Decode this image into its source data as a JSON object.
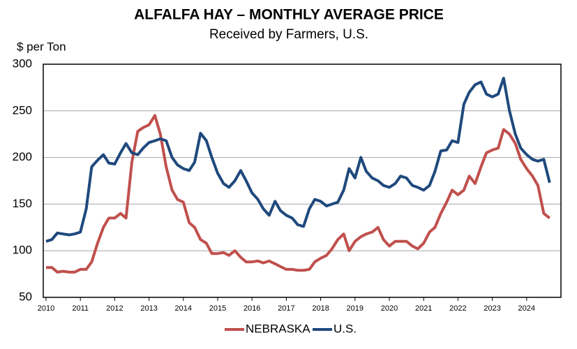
{
  "chart_data": {
    "type": "line",
    "title": "ALFALFA HAY – MONTHLY AVERAGE PRICE",
    "subtitle": "Received by Farmers, U.S.",
    "y_label": "$ per Ton",
    "x": [
      2010,
      2010.17,
      2010.33,
      2010.5,
      2010.67,
      2010.83,
      2011,
      2011.17,
      2011.33,
      2011.5,
      2011.67,
      2011.83,
      2012,
      2012.17,
      2012.33,
      2012.5,
      2012.67,
      2012.83,
      2013,
      2013.17,
      2013.33,
      2013.5,
      2013.67,
      2013.83,
      2014,
      2014.17,
      2014.33,
      2014.5,
      2014.67,
      2014.83,
      2015,
      2015.17,
      2015.33,
      2015.5,
      2015.67,
      2015.83,
      2016,
      2016.17,
      2016.33,
      2016.5,
      2016.67,
      2016.83,
      2017,
      2017.17,
      2017.33,
      2017.5,
      2017.67,
      2017.83,
      2018,
      2018.17,
      2018.33,
      2018.5,
      2018.67,
      2018.83,
      2019,
      2019.17,
      2019.33,
      2019.5,
      2019.67,
      2019.83,
      2020,
      2020.17,
      2020.33,
      2020.5,
      2020.67,
      2020.83,
      2021,
      2021.17,
      2021.33,
      2021.5,
      2021.67,
      2021.83,
      2022,
      2022.17,
      2022.33,
      2022.5,
      2022.67,
      2022.83,
      2023,
      2023.17,
      2023.33,
      2023.5,
      2023.67,
      2023.83,
      2024,
      2024.17,
      2024.33,
      2024.5,
      2024.67
    ],
    "series": [
      {
        "name": "NEBRASKA",
        "color": "#c0504d",
        "values": [
          82,
          82,
          77,
          78,
          77,
          77,
          80,
          80,
          88,
          108,
          125,
          135,
          135,
          140,
          135,
          195,
          228,
          232,
          235,
          245,
          225,
          190,
          165,
          155,
          152,
          130,
          125,
          112,
          108,
          97,
          97,
          98,
          95,
          100,
          93,
          88,
          88,
          89,
          87,
          89,
          86,
          83,
          80,
          80,
          79,
          79,
          80,
          88,
          92,
          95,
          102,
          112,
          118,
          100,
          110,
          115,
          118,
          120,
          125,
          112,
          105,
          110,
          110,
          110,
          105,
          102,
          108,
          120,
          125,
          140,
          152,
          165,
          160,
          165,
          180,
          172,
          190,
          205,
          208,
          210,
          230,
          225,
          215,
          198,
          188,
          180,
          170,
          140,
          135
        ]
      },
      {
        "name": "U.S.",
        "color": "#1f497d",
        "values": [
          110,
          112,
          119,
          118,
          117,
          118,
          120,
          145,
          190,
          197,
          203,
          194,
          193,
          205,
          215,
          205,
          203,
          210,
          216,
          218,
          220,
          218,
          200,
          192,
          188,
          186,
          195,
          226,
          218,
          200,
          183,
          172,
          168,
          175,
          186,
          175,
          162,
          155,
          145,
          138,
          153,
          143,
          138,
          135,
          128,
          126,
          145,
          155,
          153,
          148,
          150,
          152,
          165,
          188,
          178,
          200,
          185,
          178,
          175,
          170,
          168,
          172,
          180,
          178,
          170,
          168,
          165,
          170,
          185,
          207,
          208,
          218,
          216,
          257,
          270,
          278,
          281,
          268,
          265,
          268,
          285,
          250,
          225,
          210,
          203,
          198,
          196,
          198,
          173
        ]
      }
    ],
    "xlim": [
      2010,
      2025
    ],
    "xticks": [
      2010,
      2011,
      2012,
      2013,
      2014,
      2015,
      2016,
      2017,
      2018,
      2019,
      2020,
      2021,
      2022,
      2023,
      2024
    ],
    "ylim": [
      50,
      300
    ],
    "yticks": [
      50,
      100,
      150,
      200,
      250,
      300
    ],
    "grid": true
  }
}
